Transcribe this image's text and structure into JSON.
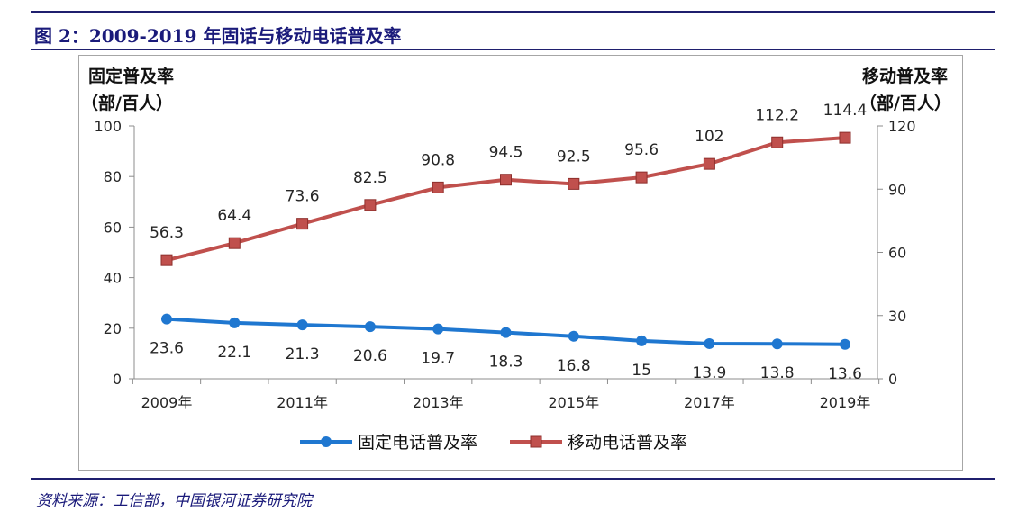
{
  "header": {
    "title": "图 2：2009-2019 年固话与移动电话普及率"
  },
  "footer": {
    "source": "资料来源：工信部，中国银河证券研究院"
  },
  "colors": {
    "fixed": "#1f77d0",
    "mobile": "#c0504d",
    "axis": "#8c8c8c",
    "frame": "#1f1f6e"
  },
  "chart_data": {
    "type": "line",
    "x": [
      2009,
      2010,
      2011,
      2012,
      2013,
      2014,
      2015,
      2016,
      2017,
      2018,
      2019
    ],
    "x_tick_labels": [
      "2009年",
      "2011年",
      "2013年",
      "2015年",
      "2017年",
      "2019年"
    ],
    "x_tick_values": [
      2009,
      2011,
      2013,
      2015,
      2017,
      2019
    ],
    "y_left": {
      "title_line1": "固定普及率",
      "title_line2": "（部/百人）",
      "range": [
        0,
        100
      ],
      "ticks": [
        0,
        20,
        40,
        60,
        80,
        100
      ]
    },
    "y_right": {
      "title_line1": "移动普及率",
      "title_line2": "（部/百人）",
      "range": [
        0,
        120
      ],
      "ticks": [
        0,
        30,
        60,
        90,
        120
      ]
    },
    "grid": false,
    "legend_position": "bottom",
    "series": [
      {
        "name": "固定电话普及率",
        "axis": "left",
        "marker": "circle",
        "values": [
          23.6,
          22.1,
          21.3,
          20.6,
          19.7,
          18.3,
          16.8,
          15,
          13.9,
          13.8,
          13.6
        ],
        "labels": [
          "23.6",
          "22.1",
          "21.3",
          "20.6",
          "19.7",
          "18.3",
          "16.8",
          "15",
          "13.9",
          "13.8",
          "13.6"
        ]
      },
      {
        "name": "移动电话普及率",
        "axis": "right",
        "marker": "square",
        "values": [
          56.3,
          64.4,
          73.6,
          82.5,
          90.8,
          94.5,
          92.5,
          95.6,
          102,
          112.2,
          114.4
        ],
        "labels": [
          "56.3",
          "64.4",
          "73.6",
          "82.5",
          "90.8",
          "94.5",
          "92.5",
          "95.6",
          "102",
          "112.2",
          "114.4"
        ]
      }
    ]
  }
}
